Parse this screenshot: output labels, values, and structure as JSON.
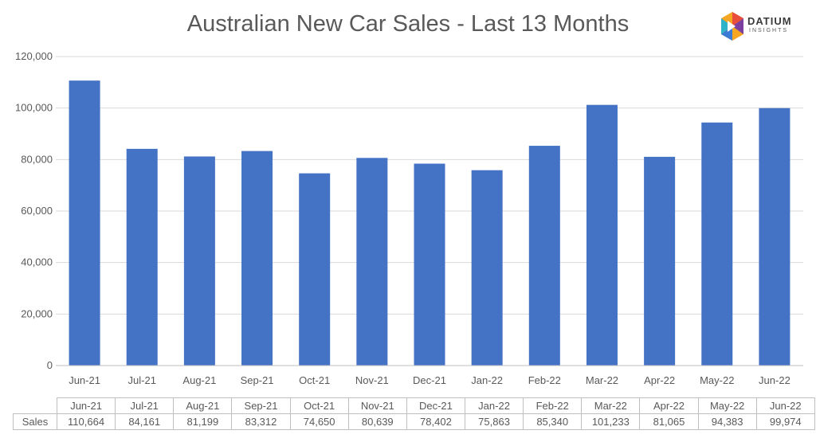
{
  "logo": {
    "word": "DATIUM",
    "sub": "INSIGHTS"
  },
  "colors": {
    "bar": "#4472c4",
    "grid": "#d9d9d9",
    "text": "#595959"
  },
  "table": {
    "row_label": "Sales"
  },
  "chart_data": {
    "type": "bar",
    "title": "Australian New Car Sales  - Last 13 Months",
    "xlabel": "",
    "ylabel": "",
    "ylim": [
      0,
      120000
    ],
    "yticks": [
      0,
      20000,
      40000,
      60000,
      80000,
      100000,
      120000
    ],
    "ytick_labels": [
      "0",
      "20,000",
      "40,000",
      "60,000",
      "80,000",
      "100,000",
      "120,000"
    ],
    "grid": true,
    "categories": [
      "Jun-21",
      "Jul-21",
      "Aug-21",
      "Sep-21",
      "Oct-21",
      "Nov-21",
      "Dec-21",
      "Jan-22",
      "Feb-22",
      "Mar-22",
      "Apr-22",
      "May-22",
      "Jun-22"
    ],
    "series": [
      {
        "name": "Sales",
        "values": [
          110664,
          84161,
          81199,
          83312,
          74650,
          80639,
          78402,
          75863,
          85340,
          101233,
          81065,
          94383,
          99974
        ],
        "value_labels": [
          "110,664",
          "84,161",
          "81,199",
          "83,312",
          "74,650",
          "80,639",
          "78,402",
          "75,863",
          "85,340",
          "101,233",
          "81,065",
          "94,383",
          "99,974"
        ]
      }
    ]
  }
}
